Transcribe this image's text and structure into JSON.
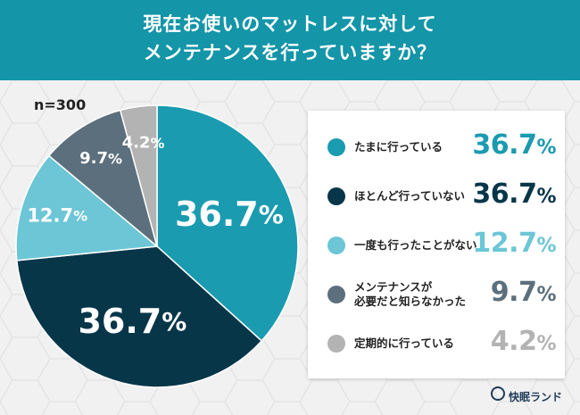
{
  "header": {
    "title_line1": "現在お使いのマットレスに対して",
    "title_line2": "メンテナンスを行っていますか？"
  },
  "sample_size": "n=300",
  "brand": "快眠ランド",
  "colors": {
    "header": "#1495a8",
    "background": "#f1f1f1"
  },
  "chart_data": {
    "type": "pie",
    "title": "現在お使いのマットレスに対してメンテナンスを行っていますか？",
    "unit": "%",
    "slices": [
      {
        "label": "たまに行っている",
        "value": 36.7,
        "display": "36.7",
        "color": "#1a9bb0"
      },
      {
        "label": "ほとんど行っていない",
        "value": 36.7,
        "display": "36.7",
        "color": "#073649"
      },
      {
        "label": "一度も行ったことがない",
        "value": 12.7,
        "display": "12.7",
        "color": "#6cc6d6"
      },
      {
        "label": "メンテナンスが\n必要だと知らなかった",
        "value": 9.7,
        "display": "9.7",
        "color": "#5c6f7c"
      },
      {
        "label": "定期的に行っている",
        "value": 4.2,
        "display": "4.2",
        "color": "#b3b3b3"
      }
    ],
    "start_angle": 0,
    "direction": "clockwise",
    "legend_position": "right"
  }
}
